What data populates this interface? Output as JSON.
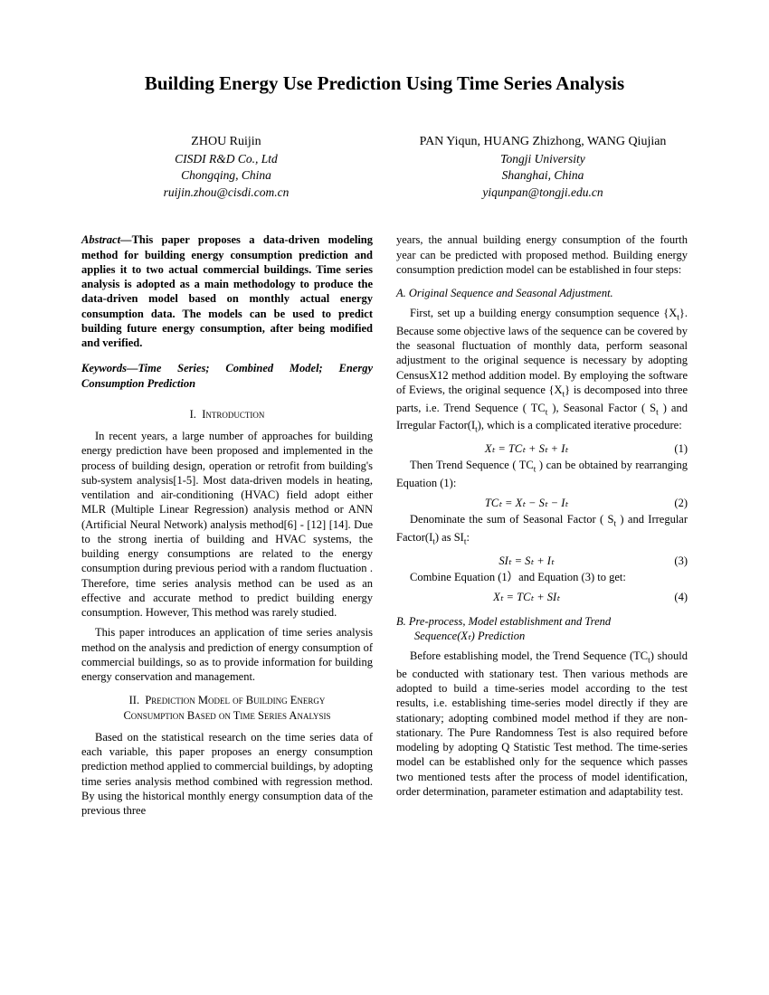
{
  "title": "Building Energy Use Prediction Using Time Series Analysis",
  "authors": {
    "left": {
      "names": "ZHOU Ruijin",
      "affil": "CISDI R&D Co., Ltd",
      "city": "Chongqing, China",
      "email": "ruijin.zhou@cisdi.com.cn"
    },
    "right": {
      "names": "PAN Yiqun, HUANG Zhizhong, WANG Qiujian",
      "affil": "Tongji University",
      "city": "Shanghai, China",
      "email": "yiqunpan@tongji.edu.cn"
    }
  },
  "abstract_label": "Abstract—",
  "abstract": "This paper proposes a data-driven modeling method for building energy consumption prediction and applies it to two actual commercial buildings. Time series analysis is adopted as a main methodology to produce the data-driven model based on monthly actual energy consumption data. The models can be used to predict building future energy consumption, after being modified and verified.",
  "keywords_label": "Keywords—",
  "keywords": "Time Series; Combined Model; Energy Consumption Prediction",
  "sec1": {
    "num": "I.",
    "text": "Introduction"
  },
  "intro_p1": "In recent years, a large number of approaches for building energy prediction have been proposed and implemented in the process of building design, operation or retrofit from building's sub-system analysis[1-5]. Most data-driven models in heating, ventilation and air-conditioning (HVAC) field adopt either MLR (Multiple Linear Regression) analysis method or ANN (Artificial Neural Network) analysis method[6] - [12] [14]. Due to the strong inertia of building and HVAC systems, the building energy consumptions are related to the energy consumption during previous period with a random fluctuation . Therefore, time series analysis method can be used as an effective and accurate method to predict building energy consumption. However, This method was rarely studied.",
  "intro_p2": "This paper introduces an application of time series analysis method on the analysis and prediction of energy consumption of commercial buildings, so as to provide information for building energy conservation and management.",
  "sec2": {
    "num": "II.",
    "line1": "Prediction Model of Building Energy",
    "line2": "Consumption Based on Time Series Analysis"
  },
  "sec2_p1": "Based on the statistical research on the time series data of each variable, this paper proposes an energy consumption prediction method applied to commercial buildings, by adopting time series analysis method combined with regression method. By using the historical monthly energy consumption data of the previous three",
  "col2_cont": "years, the annual building energy consumption of the fourth year can be predicted with proposed method. Building energy consumption prediction model can be established in four steps:",
  "subA": "A.   Original Sequence and Seasonal Adjustment.",
  "subA_p1a": "First, set up a building energy consumption sequence {X",
  "subA_p1b": "}. Because some objective laws of the sequence can be covered by the seasonal fluctuation of monthly data, perform seasonal adjustment to the original sequence is necessary by adopting CensusX12 method addition model. By employing the software of Eviews, the original sequence {X",
  "subA_p1c": "} is decomposed into three parts, i.e. Trend Sequence ( TC",
  "subA_p1d": " ), Seasonal Factor ( S",
  "subA_p1e": " ) and Irregular Factor(I",
  "subA_p1f": "), which is a complicated iterative procedure:",
  "eq1": "Xₜ = TCₜ + Sₜ + Iₜ",
  "eq1_num": "(1)",
  "subA_p2a": "Then Trend Sequence ( TC",
  "subA_p2b": " ) can be obtained by rearranging Equation (1):",
  "eq2": "TCₜ = Xₜ − Sₜ − Iₜ",
  "eq2_num": "(2)",
  "subA_p3a": "Denominate the sum of Seasonal Factor ( S",
  "subA_p3b": " ) and Irregular Factor(I",
  "subA_p3c": ") as SI",
  "subA_p3d": ":",
  "eq3": "SIₜ = Sₜ + Iₜ",
  "eq3_num": "(3)",
  "subA_p4": "Combine Equation (1）and Equation (3) to get:",
  "eq4": "Xₜ = TCₜ + SIₜ",
  "eq4_num": "(4)",
  "subB_line1": "B.   Pre-process, Model establishment and Trend",
  "subB_line2": "Sequence(Xₜ) Prediction",
  "subB_p1a": "Before establishing model, the Trend Sequence (TC",
  "subB_p1b": ") should be conducted with stationary test. Then various methods are adopted to build a time-series model according to the test results, i.e. establishing time-series model directly if they are stationary; adopting combined model method if they are non-stationary. The Pure Randomness Test is also required before modeling by adopting Q Statistic Test method. The time-series model can be established only for the sequence which passes two mentioned tests after the process of model identification, order determination, parameter estimation and adaptability test.",
  "t": "t"
}
